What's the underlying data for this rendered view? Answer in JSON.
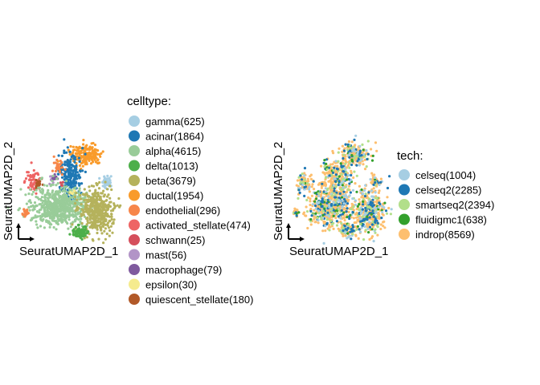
{
  "chart_data": [
    {
      "type": "scatter",
      "xlabel": "SeuratUMAP2D_1",
      "ylabel": "SeuratUMAP2D_2",
      "legend": {
        "title": "celltype:",
        "placement": "right",
        "entries": [
          {
            "label": "gamma(625)",
            "color": "#A6CEE3"
          },
          {
            "label": "acinar(1864)",
            "color": "#1F78B4"
          },
          {
            "label": "alpha(4615)",
            "color": "#99CC99"
          },
          {
            "label": "delta(1013)",
            "color": "#4DAF4A"
          },
          {
            "label": "beta(3679)",
            "color": "#B5B25C"
          },
          {
            "label": "ductal(1954)",
            "color": "#F99B2B"
          },
          {
            "label": "endothelial(296)",
            "color": "#F7864A"
          },
          {
            "label": "activated_stellate(474)",
            "color": "#EE6464"
          },
          {
            "label": "schwann(25)",
            "color": "#D54F5C"
          },
          {
            "label": "mast(56)",
            "color": "#B294C7"
          },
          {
            "label": "macrophage(79)",
            "color": "#7F5A9E"
          },
          {
            "label": "epsilon(30)",
            "color": "#F5EB8E"
          },
          {
            "label": "quiescent_stellate(180)",
            "color": "#B15928"
          }
        ]
      },
      "clusters": [
        {
          "group": "ductal",
          "x": 107,
          "y": 193,
          "sx": 10,
          "sy": 7,
          "n": 180
        },
        {
          "group": "acinar",
          "x": 87,
          "y": 218,
          "sx": 7,
          "sy": 13,
          "n": 220
        },
        {
          "group": "gamma",
          "x": 133,
          "y": 226,
          "sx": 3.5,
          "sy": 4,
          "n": 40
        },
        {
          "group": "endothelial",
          "x": 74,
          "y": 208,
          "sx": 3,
          "sy": 5,
          "n": 30
        },
        {
          "group": "activated_stellate",
          "x": 42,
          "y": 227,
          "sx": 5,
          "sy": 6,
          "n": 60
        },
        {
          "group": "quiescent_stellate",
          "x": 47,
          "y": 228,
          "sx": 2,
          "sy": 3,
          "n": 20
        },
        {
          "group": "mast",
          "x": 65,
          "y": 225,
          "sx": 2,
          "sy": 3,
          "n": 10
        },
        {
          "group": "macrophage",
          "x": 67,
          "y": 222,
          "sx": 2,
          "sy": 2,
          "n": 10
        },
        {
          "group": "alpha",
          "x": 74,
          "y": 257,
          "sx": 17,
          "sy": 12,
          "n": 650
        },
        {
          "group": "beta",
          "x": 120,
          "y": 262,
          "sx": 10,
          "sy": 14,
          "n": 420
        },
        {
          "group": "delta",
          "x": 100,
          "y": 290,
          "sx": 5,
          "sy": 4,
          "n": 90
        },
        {
          "group": "endothelial",
          "x": 32,
          "y": 265,
          "sx": 2,
          "sy": 3,
          "n": 20
        },
        {
          "group": "epsilon",
          "x": 90,
          "y": 240,
          "sx": 2,
          "sy": 2,
          "n": 6
        },
        {
          "group": "schwann",
          "x": 78,
          "y": 231,
          "sx": 1.5,
          "sy": 1.5,
          "n": 5
        }
      ]
    },
    {
      "type": "scatter",
      "xlabel": "SeuratUMAP2D_1",
      "ylabel": "SeuratUMAP2D_2",
      "legend": {
        "title": "tech:",
        "placement": "right",
        "entries": [
          {
            "label": "celseq(1004)",
            "color": "#A6CEE3"
          },
          {
            "label": "celseq2(2285)",
            "color": "#1F78B4"
          },
          {
            "label": "smartseq2(2394)",
            "color": "#B2DF8A"
          },
          {
            "label": "fluidigmc1(638)",
            "color": "#33A02C"
          },
          {
            "label": "indrop(8569)",
            "color": "#FDBF6F"
          }
        ]
      },
      "clusters": [
        {
          "x": 442,
          "y": 193,
          "sx": 9,
          "sy": 7,
          "n": 200
        },
        {
          "x": 421,
          "y": 222,
          "sx": 8,
          "sy": 13,
          "n": 240
        },
        {
          "x": 467,
          "y": 226,
          "sx": 3.5,
          "sy": 4,
          "n": 40
        },
        {
          "x": 379,
          "y": 228,
          "sx": 5,
          "sy": 6,
          "n": 70
        },
        {
          "x": 408,
          "y": 210,
          "sx": 3,
          "sy": 4,
          "n": 30
        },
        {
          "x": 411,
          "y": 258,
          "sx": 14,
          "sy": 12,
          "n": 520
        },
        {
          "x": 459,
          "y": 262,
          "sx": 10,
          "sy": 14,
          "n": 380
        },
        {
          "x": 434,
          "y": 288,
          "sx": 5,
          "sy": 4,
          "n": 80
        },
        {
          "x": 368,
          "y": 265,
          "sx": 2,
          "sy": 3,
          "n": 20
        },
        {
          "x": 401,
          "y": 229,
          "sx": 2,
          "sy": 2,
          "n": 12
        }
      ],
      "tech_mix": [
        0.08,
        0.14,
        0.1,
        0.04,
        0.64
      ]
    }
  ]
}
